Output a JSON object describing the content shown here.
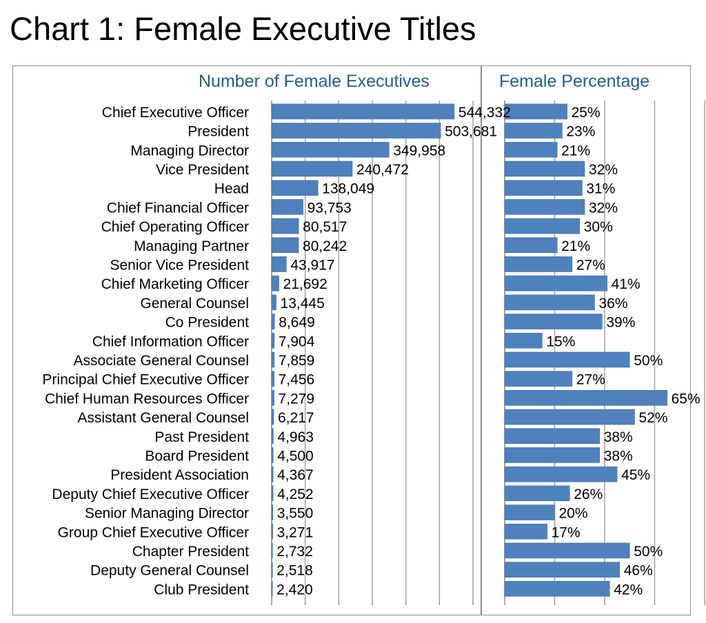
{
  "title": "Chart 1: Female Executive Titles",
  "chart_data": [
    {
      "type": "bar",
      "orientation": "horizontal",
      "title": "Number of Female Executives",
      "categories": [
        "Chief Executive Officer",
        "President",
        "Managing Director",
        "Vice President",
        "Head",
        "Chief Financial Officer",
        "Chief Operating Officer",
        "Managing Partner",
        "Senior Vice President",
        "Chief Marketing Officer",
        "General Counsel",
        "Co President",
        "Chief Information Officer",
        "Associate General Counsel",
        "Principal Chief Executive Officer",
        "Chief Human Resources Officer",
        "Assistant General Counsel",
        "Past President",
        "Board President",
        "President Association",
        "Deputy Chief Executive Officer",
        "Senior Managing Director",
        "Group Chief Executive Officer",
        "Chapter President",
        "Deputy General Counsel",
        "Club President"
      ],
      "values": [
        544332,
        503681,
        349958,
        240472,
        138049,
        93753,
        80517,
        80242,
        43917,
        21692,
        13445,
        8649,
        7904,
        7859,
        7456,
        7279,
        6217,
        4963,
        4500,
        4367,
        4252,
        3550,
        3271,
        2732,
        2518,
        2420
      ],
      "value_labels": [
        "544,332",
        "503,681",
        "349,958",
        "240,472",
        "138,049",
        "93,753",
        "80,517",
        "80,242",
        "43,917",
        "21,692",
        "13,445",
        "8,649",
        "7,904",
        "7,859",
        "7,456",
        "7,279",
        "6,217",
        "4,963",
        "4,500",
        "4,367",
        "4,252",
        "3,550",
        "3,271",
        "2,732",
        "2,518",
        "2,420"
      ],
      "xlim": [
        0,
        600000
      ],
      "grid": true,
      "bar_color": "#4f81bd"
    },
    {
      "type": "bar",
      "orientation": "horizontal",
      "title": "Female Percentage",
      "values": [
        25,
        23,
        21,
        32,
        31,
        32,
        30,
        21,
        27,
        41,
        36,
        39,
        15,
        50,
        27,
        65,
        52,
        38,
        38,
        45,
        26,
        20,
        17,
        50,
        46,
        42
      ],
      "value_labels": [
        "25%",
        "23%",
        "21%",
        "32%",
        "31%",
        "32%",
        "30%",
        "21%",
        "27%",
        "41%",
        "36%",
        "39%",
        "15%",
        "50%",
        "27%",
        "65%",
        "52%",
        "38%",
        "38%",
        "45%",
        "26%",
        "20%",
        "17%",
        "50%",
        "46%",
        "42%"
      ],
      "xlim": [
        0,
        80
      ],
      "grid": true,
      "bar_color": "#4f81bd"
    }
  ]
}
